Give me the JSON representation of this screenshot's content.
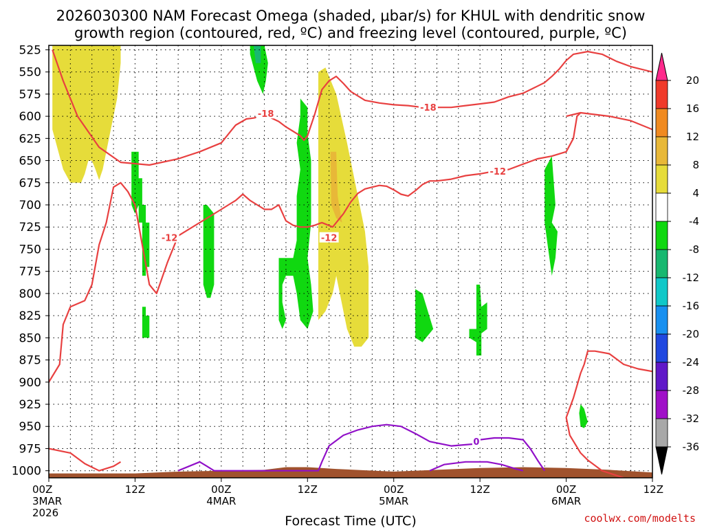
{
  "chart_data": {
    "type": "time-height cross section",
    "title_line1": "2026030300 NAM Forecast Omega (shaded, μbar/s) for KHUL with dendritic snow",
    "title_line2": "growth region (contoured, red, ºC) and freezing level (contoured, purple, ºC)",
    "xlabel": "Forecast Time (UTC)",
    "credit": "coolwx.com/modelts",
    "x_hours_range": [
      0,
      84
    ],
    "y_pressure_range": [
      520,
      1008
    ],
    "y_ticks": [
      "525",
      "550",
      "575",
      "600",
      "625",
      "650",
      "675",
      "700",
      "725",
      "750",
      "775",
      "800",
      "825",
      "850",
      "875",
      "900",
      "925",
      "950",
      "975",
      "1000"
    ],
    "x_ticks": [
      {
        "hour": 0,
        "lines": [
          "00Z",
          "3MAR",
          "2026"
        ]
      },
      {
        "hour": 12,
        "lines": [
          "12Z"
        ]
      },
      {
        "hour": 24,
        "lines": [
          "00Z",
          "4MAR"
        ]
      },
      {
        "hour": 36,
        "lines": [
          "12Z"
        ]
      },
      {
        "hour": 48,
        "lines": [
          "00Z",
          "5MAR"
        ]
      },
      {
        "hour": 60,
        "lines": [
          "12Z"
        ]
      },
      {
        "hour": 72,
        "lines": [
          "00Z",
          "6MAR"
        ]
      },
      {
        "hour": 84,
        "lines": [
          "12Z"
        ]
      }
    ],
    "colorbar": {
      "labels": [
        "20",
        "16",
        "12",
        "8",
        "4",
        "-4",
        "-8",
        "-12",
        "-16",
        "-20",
        "-24",
        "-28",
        "-32",
        "-36"
      ],
      "colors": [
        "#ff2a8c",
        "#f03a2a",
        "#f08a20",
        "#e8b838",
        "#e6dc3a",
        "#ffffff",
        "#10d810",
        "#18b870",
        "#10c8c8",
        "#1890f0",
        "#2048e0",
        "#6018c8",
        "#a010c8",
        "#a8a8a8",
        "#000000"
      ]
    },
    "contour_labels": [
      {
        "text": "-18",
        "hour": 30.2,
        "p": 597,
        "color": "#e84040"
      },
      {
        "text": "-18",
        "hour": 52.8,
        "p": 590,
        "color": "#e84040"
      },
      {
        "text": "-12",
        "hour": 16.8,
        "p": 737,
        "color": "#e84040"
      },
      {
        "text": "-12",
        "hour": 39.0,
        "p": 737,
        "color": "#e84040"
      },
      {
        "text": "-12",
        "hour": 62.5,
        "p": 662,
        "color": "#e84040"
      },
      {
        "text": "0",
        "hour": 59.5,
        "p": 967,
        "color": "#9010c8"
      }
    ],
    "dgz_upper_-18C": [
      [
        0.5,
        525
      ],
      [
        2,
        560
      ],
      [
        4,
        600
      ],
      [
        7,
        635
      ],
      [
        10,
        652
      ],
      [
        14,
        655
      ],
      [
        18,
        648
      ],
      [
        21,
        640
      ],
      [
        24,
        630
      ],
      [
        25.5,
        615
      ],
      [
        26,
        610
      ],
      [
        27.5,
        603
      ],
      [
        28.5,
        602
      ],
      [
        29.5,
        600
      ],
      [
        30.2,
        597
      ],
      [
        31,
        602
      ],
      [
        32,
        606
      ],
      [
        33,
        612
      ],
      [
        34,
        617
      ],
      [
        35,
        622
      ],
      [
        35.5,
        627
      ],
      [
        36,
        622
      ],
      [
        37,
        598
      ],
      [
        38,
        570
      ],
      [
        39,
        560
      ],
      [
        40,
        555
      ],
      [
        41,
        563
      ],
      [
        42,
        572
      ],
      [
        44,
        582
      ],
      [
        46,
        585
      ],
      [
        48,
        587
      ],
      [
        50,
        588
      ],
      [
        52,
        590
      ],
      [
        54,
        590
      ],
      [
        56,
        590
      ],
      [
        58,
        588
      ],
      [
        60,
        586
      ],
      [
        62,
        584
      ],
      [
        64,
        578
      ],
      [
        66,
        574
      ],
      [
        68,
        566
      ],
      [
        69,
        562
      ],
      [
        70,
        555
      ],
      [
        71,
        547
      ],
      [
        72,
        537
      ],
      [
        73,
        530
      ],
      [
        75,
        527
      ],
      [
        77,
        530
      ],
      [
        79,
        538
      ],
      [
        81,
        544
      ],
      [
        84,
        550
      ]
    ],
    "dgz_lower_-18C": [
      [
        72,
        600
      ],
      [
        74,
        596
      ],
      [
        78,
        600
      ],
      [
        81,
        605
      ],
      [
        84,
        615
      ]
    ],
    "dgz_upper_-12C": [
      [
        0,
        900
      ],
      [
        1.5,
        880
      ],
      [
        2,
        835
      ],
      [
        3,
        815
      ],
      [
        5,
        808
      ],
      [
        6,
        790
      ],
      [
        7,
        745
      ],
      [
        8,
        720
      ],
      [
        9,
        680
      ],
      [
        10,
        675
      ],
      [
        11,
        685
      ],
      [
        12,
        700
      ],
      [
        13,
        745
      ],
      [
        14,
        790
      ],
      [
        15,
        800
      ],
      [
        16.5,
        765
      ],
      [
        18,
        735
      ],
      [
        21,
        720
      ],
      [
        24,
        705
      ],
      [
        25,
        700
      ],
      [
        26,
        695
      ],
      [
        27,
        688
      ],
      [
        28,
        695
      ],
      [
        29,
        700
      ],
      [
        30,
        705
      ],
      [
        31,
        705
      ],
      [
        32,
        700
      ],
      [
        33,
        718
      ],
      [
        34,
        723
      ],
      [
        35,
        725
      ],
      [
        36,
        725
      ],
      [
        37,
        723
      ],
      [
        38,
        720
      ],
      [
        39.5,
        725
      ],
      [
        41,
        710
      ],
      [
        42,
        697
      ],
      [
        43,
        687
      ],
      [
        44,
        682
      ],
      [
        45,
        680
      ],
      [
        46,
        678
      ],
      [
        47,
        679
      ],
      [
        48,
        683
      ],
      [
        49,
        688
      ],
      [
        50,
        690
      ],
      [
        51,
        684
      ],
      [
        52,
        677
      ],
      [
        53,
        673
      ],
      [
        54,
        673
      ],
      [
        56,
        671
      ],
      [
        58,
        667
      ],
      [
        60,
        665
      ],
      [
        62,
        662
      ],
      [
        64,
        660
      ],
      [
        66,
        654
      ],
      [
        68,
        648
      ],
      [
        70,
        645
      ],
      [
        72,
        640
      ],
      [
        73,
        625
      ],
      [
        73.5,
        600
      ],
      [
        74,
        596
      ]
    ],
    "dgz_lowbl_-12C": [
      [
        0,
        975
      ],
      [
        3,
        980
      ],
      [
        5,
        992
      ],
      [
        7,
        1000
      ],
      [
        9,
        995
      ],
      [
        10,
        990
      ]
    ],
    "dgz_right_-12C": [
      [
        84,
        888
      ],
      [
        82,
        885
      ],
      [
        80,
        880
      ],
      [
        78,
        868
      ],
      [
        76,
        865
      ],
      [
        75,
        865
      ],
      [
        74.5,
        880
      ],
      [
        74,
        890
      ],
      [
        73,
        918
      ],
      [
        72,
        940
      ],
      [
        72.5,
        960
      ],
      [
        74,
        980
      ],
      [
        75,
        988
      ],
      [
        77,
        1000
      ],
      [
        80,
        1008
      ]
    ],
    "freezing_0C": [
      [
        18,
        1000
      ],
      [
        21,
        990
      ],
      [
        22,
        995
      ],
      [
        23,
        1000
      ],
      [
        37.5,
        1000
      ],
      [
        38,
        990
      ],
      [
        39,
        972
      ],
      [
        41,
        960
      ],
      [
        43,
        954
      ],
      [
        45,
        950
      ],
      [
        47,
        948
      ],
      [
        49,
        950
      ],
      [
        51,
        958
      ],
      [
        53,
        967
      ],
      [
        56,
        972
      ],
      [
        59,
        970
      ],
      [
        60,
        965
      ],
      [
        62,
        963
      ],
      [
        64,
        963
      ],
      [
        66,
        965
      ],
      [
        67,
        975
      ],
      [
        68,
        988
      ],
      [
        69,
        1000
      ]
    ],
    "freezing_inner_0C": [
      [
        53,
        1000
      ],
      [
        55,
        993
      ],
      [
        58,
        990
      ],
      [
        61,
        990
      ],
      [
        63,
        993
      ],
      [
        65,
        998
      ],
      [
        66,
        1000
      ]
    ],
    "shaded_regions": [
      {
        "omega": 4,
        "pts": [
          [
            0.5,
            520
          ],
          [
            10,
            520
          ],
          [
            10,
            540
          ],
          [
            9.5,
            580
          ],
          [
            8.5,
            620
          ],
          [
            7.5,
            660
          ],
          [
            7,
            672
          ],
          [
            6.5,
            660
          ],
          [
            6,
            650
          ],
          [
            5.5,
            650
          ],
          [
            5,
            665
          ],
          [
            4.5,
            675
          ],
          [
            3,
            675
          ],
          [
            2,
            660
          ],
          [
            0.5,
            615
          ]
        ]
      },
      {
        "omega": 4,
        "pts": [
          [
            37.5,
            550
          ],
          [
            38.5,
            545
          ],
          [
            40,
            575
          ],
          [
            41.5,
            630
          ],
          [
            43,
            690
          ],
          [
            44,
            730
          ],
          [
            44.5,
            770
          ],
          [
            44.5,
            850
          ],
          [
            43.5,
            860
          ],
          [
            42.5,
            860
          ],
          [
            41.5,
            840
          ],
          [
            41,
            820
          ],
          [
            40.5,
            800
          ],
          [
            40,
            780
          ],
          [
            39.5,
            800
          ],
          [
            38.5,
            820
          ],
          [
            37.5,
            830
          ],
          [
            37.5,
            780
          ]
        ]
      },
      {
        "omega": 8,
        "pts": [
          [
            39.2,
            640
          ],
          [
            40,
            640
          ],
          [
            40.2,
            690
          ],
          [
            40.8,
            720
          ],
          [
            40,
            715
          ],
          [
            39.3,
            700
          ]
        ]
      },
      {
        "omega": -4,
        "pts": [
          [
            11.5,
            640
          ],
          [
            12.5,
            640
          ],
          [
            12.5,
            670
          ],
          [
            13,
            670
          ],
          [
            13,
            700
          ],
          [
            12.5,
            700
          ],
          [
            12,
            710
          ],
          [
            11.5,
            700
          ]
        ]
      },
      {
        "omega": -4,
        "pts": [
          [
            12.5,
            700
          ],
          [
            13.5,
            700
          ],
          [
            13.5,
            720
          ],
          [
            14,
            720
          ],
          [
            14,
            770
          ],
          [
            13.5,
            770
          ],
          [
            13.5,
            780
          ],
          [
            13,
            780
          ],
          [
            13,
            720
          ],
          [
            12.5,
            720
          ]
        ]
      },
      {
        "omega": -4,
        "pts": [
          [
            13,
            815
          ],
          [
            13.5,
            815
          ],
          [
            13.5,
            825
          ],
          [
            14,
            825
          ],
          [
            14,
            850
          ],
          [
            13,
            850
          ]
        ]
      },
      {
        "omega": -4,
        "pts": [
          [
            22,
            700
          ],
          [
            23,
            710
          ],
          [
            23,
            790
          ],
          [
            22.5,
            805
          ],
          [
            22,
            805
          ],
          [
            21.5,
            790
          ],
          [
            21.5,
            700
          ]
        ]
      },
      {
        "omega": -4,
        "pts": [
          [
            35,
            580
          ],
          [
            36,
            590
          ],
          [
            36,
            620
          ],
          [
            36.5,
            650
          ],
          [
            36.5,
            720
          ],
          [
            36,
            760
          ],
          [
            36.5,
            790
          ],
          [
            36.8,
            820
          ],
          [
            36,
            840
          ],
          [
            35,
            830
          ],
          [
            34.5,
            800
          ],
          [
            34,
            780
          ],
          [
            33,
            780
          ],
          [
            32.5,
            790
          ],
          [
            32.5,
            810
          ],
          [
            33,
            830
          ],
          [
            32.5,
            840
          ],
          [
            32,
            830
          ],
          [
            32,
            760
          ],
          [
            34,
            760
          ],
          [
            34.5,
            740
          ],
          [
            34.5,
            690
          ],
          [
            35,
            660
          ],
          [
            34.5,
            630
          ],
          [
            35,
            600
          ]
        ]
      },
      {
        "omega": -4,
        "pts": [
          [
            28,
            520
          ],
          [
            30,
            520
          ],
          [
            30.5,
            540
          ],
          [
            30.2,
            560
          ],
          [
            29.8,
            575
          ],
          [
            29,
            560
          ],
          [
            28.5,
            545
          ],
          [
            28,
            530
          ]
        ]
      },
      {
        "omega": -8,
        "pts": [
          [
            28.5,
            520
          ],
          [
            29.5,
            520
          ],
          [
            29.5,
            540
          ],
          [
            28.8,
            540
          ]
        ]
      },
      {
        "omega": -4,
        "pts": [
          [
            51,
            795
          ],
          [
            52,
            800
          ],
          [
            53.5,
            840
          ],
          [
            52,
            855
          ],
          [
            51,
            850
          ]
        ]
      },
      {
        "omega": -4,
        "pts": [
          [
            59.5,
            790
          ],
          [
            60,
            790
          ],
          [
            60.2,
            815
          ],
          [
            61,
            810
          ],
          [
            61,
            840
          ],
          [
            60.2,
            845
          ],
          [
            60.2,
            870
          ],
          [
            59.5,
            870
          ],
          [
            59.5,
            855
          ],
          [
            58.5,
            850
          ],
          [
            58.5,
            840
          ],
          [
            59.5,
            840
          ]
        ]
      },
      {
        "omega": -4,
        "pts": [
          [
            69,
            660
          ],
          [
            70,
            645
          ],
          [
            70.5,
            700
          ],
          [
            70,
            720
          ],
          [
            70.8,
            730
          ],
          [
            70.5,
            760
          ],
          [
            70,
            780
          ],
          [
            69.5,
            750
          ],
          [
            69,
            720
          ]
        ]
      },
      {
        "omega": -4,
        "pts": [
          [
            74,
            925
          ],
          [
            74.5,
            930
          ],
          [
            75,
            945
          ],
          [
            74.5,
            952
          ],
          [
            74,
            950
          ],
          [
            73.8,
            935
          ]
        ]
      }
    ]
  }
}
